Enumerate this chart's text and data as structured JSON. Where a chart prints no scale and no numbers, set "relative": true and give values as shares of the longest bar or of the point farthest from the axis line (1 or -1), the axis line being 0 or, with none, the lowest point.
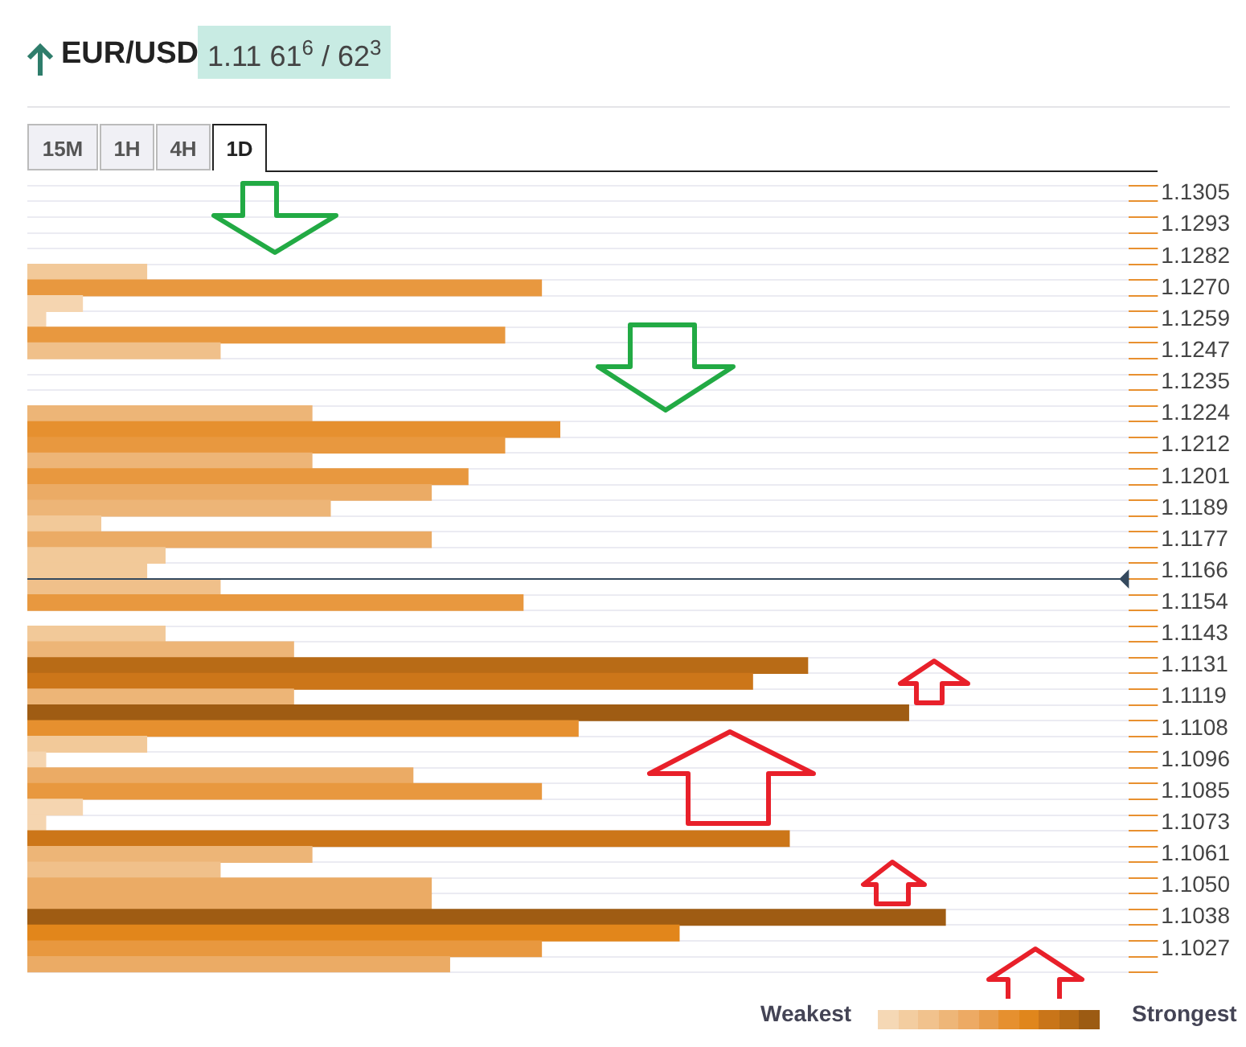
{
  "chart_data": {
    "type": "bar",
    "orientation": "horizontal",
    "relative": true,
    "title": "EUR/USD",
    "subtitle": "1.11 61$^{6}$ / 62$^{3}$",
    "categories": [
      "1.1305",
      null,
      "1.1293",
      null,
      "1.1282",
      null,
      "1.1270",
      null,
      "1.1259",
      null,
      "1.1247",
      null,
      "1.1235",
      null,
      "1.1224",
      null,
      "1.1212",
      null,
      "1.1201",
      null,
      "1.1189",
      null,
      "1.1177",
      null,
      "1.1166",
      null,
      "1.1154",
      null,
      "1.1143",
      null,
      "1.1131",
      null,
      "1.1119",
      null,
      "1.1108",
      null,
      "1.1096",
      null,
      "1.1085",
      null,
      "1.1073",
      null,
      "1.1061",
      null,
      "1.1050",
      null,
      "1.1038",
      null,
      "1.1027",
      null
    ],
    "values": [
      null,
      null,
      null,
      null,
      null,
      0.13,
      0.56,
      0.06,
      0.02,
      0.52,
      0.21,
      null,
      null,
      null,
      0.31,
      0.58,
      0.52,
      0.31,
      0.48,
      0.44,
      0.33,
      0.08,
      0.44,
      0.15,
      0.13,
      0.21,
      0.54,
      null,
      0.15,
      0.29,
      0.85,
      0.79,
      0.29,
      0.96,
      0.6,
      0.13,
      0.02,
      0.42,
      0.56,
      0.06,
      0.02,
      0.83,
      0.31,
      0.21,
      0.44,
      0.44,
      1,
      0.71,
      0.56,
      0.46
    ],
    "colors": [
      "#f5d5b0",
      "#f5d5b0",
      "#f5d5b0",
      "#f5d5b0",
      "#f5d5b0",
      "#f2c999",
      "#e8983f",
      "#f5d5b0",
      "#f5d5b0",
      "#e8983f",
      "#f0c08a",
      "#f5d5b0",
      "#f5d5b0",
      "#f5d5b0",
      "#edb577",
      "#e6902f",
      "#e8983f",
      "#edb577",
      "#e8983f",
      "#ebab65",
      "#edb577",
      "#f2c999",
      "#ebab65",
      "#f2c999",
      "#f2c999",
      "#f0c08a",
      "#e8983f",
      "#f5d5b0",
      "#f2c999",
      "#edb577",
      "#b86b16",
      "#cc7619",
      "#edb577",
      "#9f5c13",
      "#e6902f",
      "#f2c999",
      "#f5d5b0",
      "#ebab65",
      "#e8983f",
      "#f5d5b0",
      "#f5d5b0",
      "#cc7619",
      "#edb577",
      "#f0c08a",
      "#ebab65",
      "#ebab65",
      "#9f5c13",
      "#e2861b",
      "#e8983f",
      "#ebab65"
    ],
    "grid": "y",
    "legend": false,
    "ref_lines": [
      {
        "axis": "y",
        "value": "1.1166",
        "color": "#34495e"
      }
    ],
    "annotations": [
      "15M",
      "1H",
      "4H",
      "1D",
      "Weakest",
      "Strongest"
    ]
  }
}
